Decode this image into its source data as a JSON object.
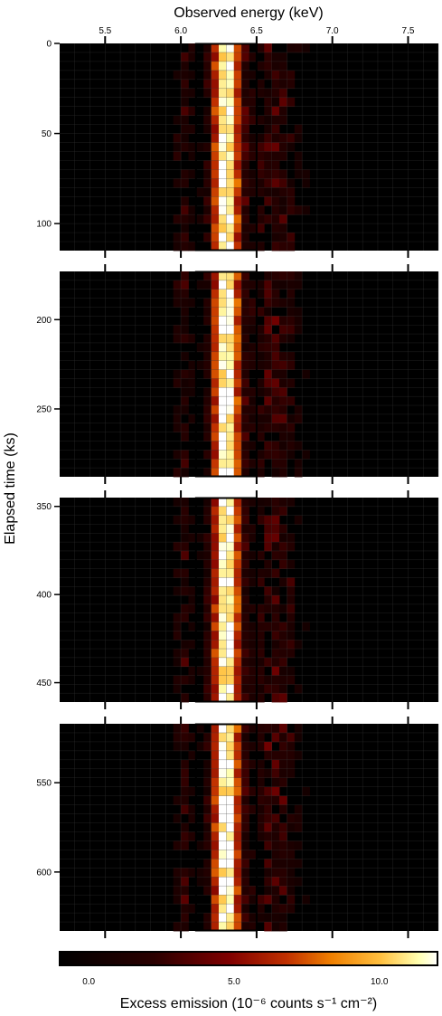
{
  "chart_data": {
    "type": "heatmap",
    "title": "",
    "xlabel": "Observed energy (keV)",
    "ylabel": "Elapsed time (ks)",
    "colorbar_label": "Excess emission (10⁻⁶ counts s⁻¹ cm⁻²)",
    "x_ticks": [
      "5.5",
      "6.0",
      "6.5",
      "7.0",
      "7.5"
    ],
    "x_tick_values": [
      5.5,
      6.0,
      6.5,
      7.0,
      7.5
    ],
    "xlim": [
      5.2,
      7.7
    ],
    "colorbar_ticks": [
      "0.0",
      "5.0",
      "10.0"
    ],
    "colorbar_tick_values": [
      0,
      5,
      10
    ],
    "clim": [
      -1,
      12
    ],
    "colormap": "afmhot",
    "line_center_keV": 6.3,
    "panels": [
      {
        "ylim": [
          0,
          115
        ],
        "y_ticks": [
          "0",
          "50",
          "100"
        ],
        "y_tick_values": [
          0,
          50,
          100
        ]
      },
      {
        "ylim": [
          173,
          288
        ],
        "y_ticks": [
          "200",
          "250"
        ],
        "y_tick_values": [
          200,
          250
        ]
      },
      {
        "ylim": [
          345,
          461
        ],
        "y_ticks": [
          "350",
          "400",
          "450"
        ],
        "y_tick_values": [
          350,
          400,
          450
        ]
      },
      {
        "ylim": [
          517,
          633
        ],
        "y_ticks": [
          "550",
          "600"
        ],
        "y_tick_values": [
          550,
          600
        ]
      }
    ],
    "grid": true
  }
}
